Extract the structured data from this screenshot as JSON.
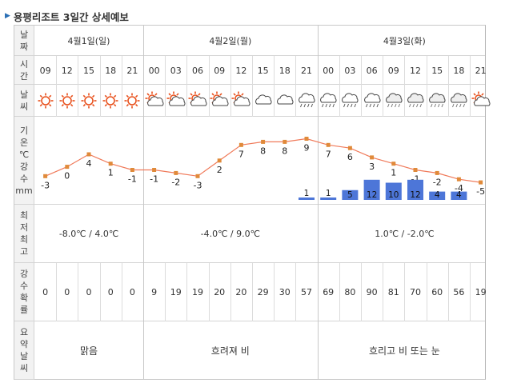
{
  "title": "용평리조트 3일간 상세예보",
  "headers": {
    "date": [
      "날",
      "짜"
    ],
    "time": [
      "시",
      "간"
    ],
    "weather": [
      "날",
      "씨"
    ],
    "temp": [
      "기",
      "온",
      "℃",
      "강",
      "수",
      "mm"
    ],
    "minmax": [
      "최",
      "저",
      "최",
      "고"
    ],
    "prob": [
      "강",
      "수",
      "확",
      "률"
    ],
    "summary": [
      "요",
      "약",
      "날",
      "씨"
    ]
  },
  "days": [
    {
      "label": "4월1일(일)",
      "minmax": "-8.0℃ / 4.0℃",
      "summary": "맑음"
    },
    {
      "label": "4월2일(월)",
      "minmax": "-4.0℃ / 9.0℃",
      "summary": "흐려져 비"
    },
    {
      "label": "4월3일(화)",
      "minmax": "1.0℃ / -2.0℃",
      "summary": "흐리고 비 또는 눈"
    }
  ],
  "slots": [
    {
      "time": "09",
      "icon": "sun",
      "temp": "-3",
      "rain": "",
      "prob": "0"
    },
    {
      "time": "12",
      "icon": "sun",
      "temp": "0",
      "rain": "",
      "prob": "0"
    },
    {
      "time": "15",
      "icon": "sun",
      "temp": "4",
      "rain": "",
      "prob": "0"
    },
    {
      "time": "18",
      "icon": "sun",
      "temp": "1",
      "rain": "",
      "prob": "0"
    },
    {
      "time": "21",
      "icon": "sun",
      "temp": "-1",
      "rain": "",
      "prob": "0"
    },
    {
      "time": "00",
      "icon": "sun-cloud",
      "temp": "-1",
      "rain": "",
      "prob": "9"
    },
    {
      "time": "03",
      "icon": "sun-cloud",
      "temp": "-2",
      "rain": "",
      "prob": "19"
    },
    {
      "time": "06",
      "icon": "sun-cloud",
      "temp": "-3",
      "rain": "",
      "prob": "19"
    },
    {
      "time": "09",
      "icon": "sun-cloud",
      "temp": "2",
      "rain": "",
      "prob": "20"
    },
    {
      "time": "12",
      "icon": "sun-cloud",
      "temp": "7",
      "rain": "",
      "prob": "20"
    },
    {
      "time": "15",
      "icon": "cloud",
      "temp": "8",
      "rain": "",
      "prob": "29"
    },
    {
      "time": "18",
      "icon": "cloud",
      "temp": "8",
      "rain": "",
      "prob": "30"
    },
    {
      "time": "21",
      "icon": "rain",
      "temp": "9",
      "rain": "1",
      "prob": "57"
    },
    {
      "time": "00",
      "icon": "rain",
      "temp": "7",
      "rain": "1",
      "prob": "69"
    },
    {
      "time": "03",
      "icon": "rain",
      "temp": "6",
      "rain": "5",
      "prob": "80"
    },
    {
      "time": "06",
      "icon": "rain",
      "temp": "3",
      "rain": "12",
      "prob": "90"
    },
    {
      "time": "09",
      "icon": "snow-rain",
      "temp": "1",
      "rain": "10",
      "prob": "81"
    },
    {
      "time": "12",
      "icon": "snow-rain",
      "temp": "-1",
      "rain": "12",
      "prob": "70"
    },
    {
      "time": "15",
      "icon": "snow-rain",
      "temp": "-2",
      "rain": "4",
      "prob": "60"
    },
    {
      "time": "18",
      "icon": "snow-rain",
      "temp": "-4",
      "rain": "4",
      "prob": "56"
    },
    {
      "time": "21",
      "icon": "sun-cloud",
      "temp": "-5",
      "rain": "",
      "prob": "19"
    }
  ],
  "colors": {
    "line": "#f07a5a",
    "marker": "#e08a3a",
    "bar": "#4d76d8",
    "sun": "#e8501c"
  }
}
